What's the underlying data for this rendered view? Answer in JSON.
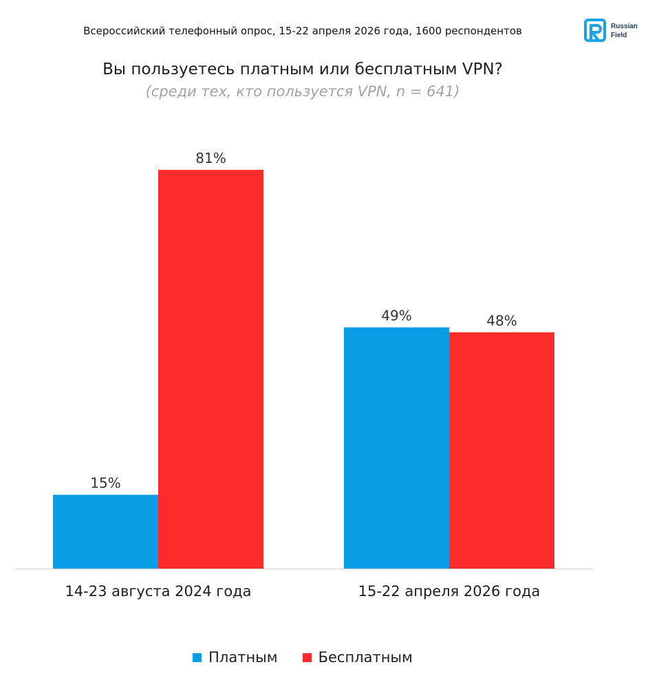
{
  "header": {
    "survey_line": "Всероссийский телефонный опрос, 15-22 апреля 2026 года, 1600 респондентов",
    "logo_text": "Russian Field"
  },
  "colors": {
    "paid": "#0b9de6",
    "free": "#fb2b2b",
    "axis": "#d9d9d9",
    "logo": "#1ba3e4"
  },
  "chart_data": {
    "type": "bar",
    "title": "Вы пользуетесь платным или бесплатным VPN?",
    "subtitle": "(среди тех, кто пользуется VPN, n = 641)",
    "categories": [
      "14-23 августа 2024 года",
      "15-22 апреля 2026 года"
    ],
    "series": [
      {
        "name": "Платным",
        "values": [
          15,
          49
        ],
        "labels": [
          "15%",
          "49%"
        ]
      },
      {
        "name": "Бесплатным",
        "values": [
          81,
          48
        ],
        "labels": [
          "81%",
          "48%"
        ]
      }
    ],
    "ylim": [
      0,
      100
    ],
    "grid": false,
    "legend": "bottom"
  }
}
